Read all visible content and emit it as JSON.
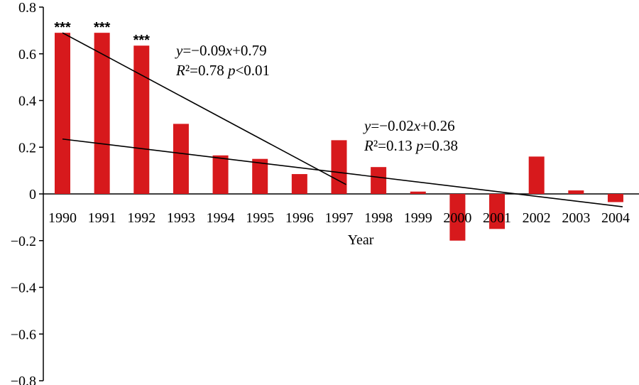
{
  "chart_data": {
    "type": "bar",
    "title": "",
    "xlabel": "Year",
    "ylabel": "",
    "ylim": [
      -0.8,
      0.8
    ],
    "yticks": [
      "0.8",
      "0.6",
      "0.4",
      "0.2",
      "0",
      "−0.2",
      "−0.4",
      "−0.6",
      "−0.8"
    ],
    "ytick_values": [
      0.8,
      0.6,
      0.4,
      0.2,
      0,
      -0.2,
      -0.4,
      -0.6,
      -0.8
    ],
    "categories": [
      "1990",
      "1991",
      "1992",
      "1993",
      "1994",
      "1995",
      "1996",
      "1997",
      "1998",
      "1999",
      "2000",
      "2001",
      "2002",
      "2003",
      "2004"
    ],
    "values": [
      0.69,
      0.69,
      0.635,
      0.3,
      0.165,
      0.15,
      0.085,
      0.23,
      0.115,
      0.01,
      -0.2,
      -0.15,
      0.16,
      0.015,
      -0.035
    ],
    "bar_color": "#d7191c",
    "significance": [
      {
        "category": "1990",
        "label": "***"
      },
      {
        "category": "1991",
        "label": "***"
      },
      {
        "category": "1992",
        "label": "***"
      }
    ],
    "trendlines": [
      {
        "from_index": 0,
        "to_index": 7,
        "start_value": 0.69,
        "end_value": 0.04
      },
      {
        "from_index": 0,
        "to_index": 14,
        "start_value": 0.235,
        "end_value": -0.055
      }
    ],
    "annotations": {
      "fit1_eq_prefix": "y",
      "fit1_eq_mid": "=−0.09",
      "fit1_eq_x": "x",
      "fit1_eq_suffix": "+0.79",
      "fit1_r_prefix": "R",
      "fit1_r_mid": "²=0.78 ",
      "fit1_p_prefix": "p",
      "fit1_p_suffix": "<0.01",
      "fit2_eq_prefix": "y",
      "fit2_eq_mid": "=−0.02",
      "fit2_eq_x": "x",
      "fit2_eq_suffix": "+0.26",
      "fit2_r_prefix": "R",
      "fit2_r_mid": "²=0.13 ",
      "fit2_p_prefix": "p",
      "fit2_p_suffix": "=0.38"
    }
  }
}
